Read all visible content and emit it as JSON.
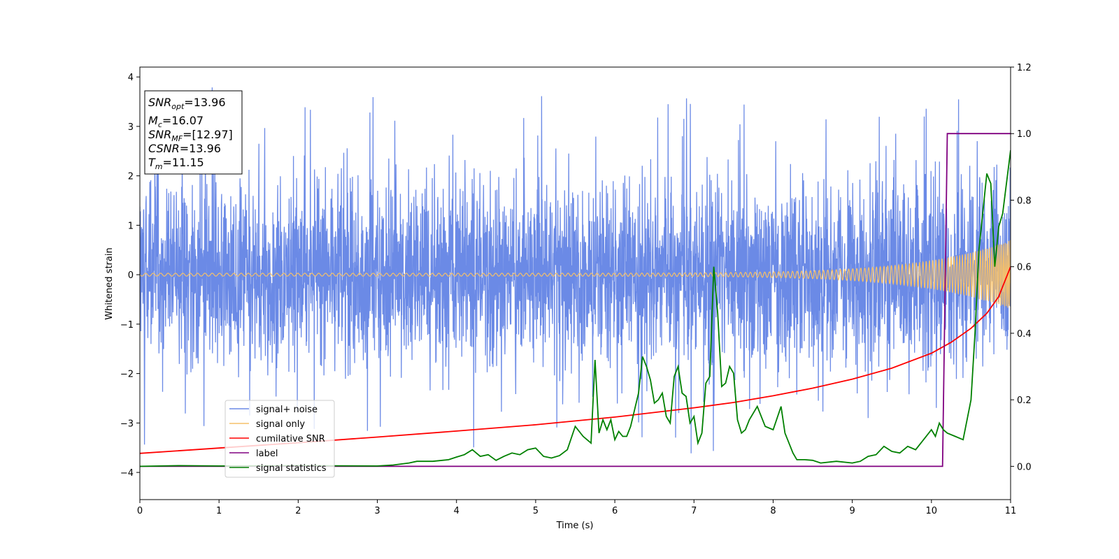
{
  "chart_data": {
    "type": "line",
    "xlabel": "Time (s)",
    "ylabel": "Whitened strain",
    "xlim": [
      0,
      11
    ],
    "ylim_left": [
      -4.55,
      4.2
    ],
    "ylim_right": [
      -0.1,
      1.2
    ],
    "x_ticks": [
      "0",
      "1",
      "2",
      "3",
      "4",
      "5",
      "6",
      "7",
      "8",
      "9",
      "10",
      "11"
    ],
    "y_left_ticks": [
      "4",
      "3",
      "2",
      "1",
      "0",
      "−1",
      "−2",
      "−3",
      "−4"
    ],
    "y_right_ticks": [
      "1.2",
      "1.0",
      "0.8",
      "0.6",
      "0.4",
      "0.2",
      "0.0"
    ],
    "legend_position": "lower-left",
    "info_box": {
      "snr_opt": {
        "base": "SNR",
        "sub": "opt",
        "value": "=13.96"
      },
      "mc": {
        "base": "M",
        "sub": "c",
        "value": "=16.07"
      },
      "snr_mf": {
        "base": "SNR",
        "sub": "MF",
        "value": "=[12.97]"
      },
      "csnr": {
        "base": "CSNR",
        "sub": "",
        "value": "=13.96"
      },
      "tm": {
        "base": "T",
        "sub": "m",
        "value": "=11.15"
      }
    },
    "series": [
      {
        "name": "signal+ noise",
        "axis": "left",
        "color": "#6b8ae6",
        "kind": "noise",
        "std": 0.95,
        "spike_max": 3.8,
        "spike_min": -4.1
      },
      {
        "name": "signal only",
        "axis": "left",
        "color": "#f5c06a",
        "kind": "chirp",
        "amp_start": 0.03,
        "amp_end": 0.7
      },
      {
        "name": "cumilative SNR",
        "axis": "right",
        "color": "#ff0000",
        "kind": "curve",
        "x": [
          0,
          1,
          2,
          3,
          4,
          5,
          6,
          7,
          7.5,
          8,
          8.5,
          9,
          9.5,
          10,
          10.25,
          10.5,
          10.7,
          10.85,
          11
        ],
        "y": [
          0.039,
          0.055,
          0.071,
          0.088,
          0.106,
          0.125,
          0.148,
          0.176,
          0.192,
          0.212,
          0.235,
          0.262,
          0.295,
          0.34,
          0.373,
          0.415,
          0.46,
          0.51,
          0.6
        ]
      },
      {
        "name": "label",
        "axis": "right",
        "color": "#800080",
        "kind": "step",
        "x": [
          0,
          10.14,
          10.2,
          11
        ],
        "y": [
          0,
          0,
          1,
          1
        ]
      },
      {
        "name": "signal statistics",
        "axis": "right",
        "color": "#008000",
        "kind": "curve",
        "x": [
          0,
          0.5,
          1,
          2,
          3,
          3.2,
          3.4,
          3.5,
          3.7,
          3.9,
          4.0,
          4.1,
          4.2,
          4.3,
          4.4,
          4.5,
          4.6,
          4.7,
          4.8,
          4.9,
          5.0,
          5.1,
          5.2,
          5.3,
          5.4,
          5.5,
          5.6,
          5.7,
          5.75,
          5.8,
          5.85,
          5.9,
          5.95,
          6.0,
          6.05,
          6.1,
          6.15,
          6.2,
          6.3,
          6.35,
          6.4,
          6.45,
          6.5,
          6.55,
          6.6,
          6.65,
          6.7,
          6.75,
          6.8,
          6.85,
          6.9,
          6.95,
          7.0,
          7.05,
          7.1,
          7.15,
          7.2,
          7.25,
          7.3,
          7.35,
          7.4,
          7.45,
          7.5,
          7.55,
          7.6,
          7.65,
          7.7,
          7.8,
          7.9,
          8.0,
          8.1,
          8.15,
          8.2,
          8.25,
          8.3,
          8.4,
          8.5,
          8.6,
          8.8,
          9.0,
          9.1,
          9.2,
          9.3,
          9.4,
          9.5,
          9.6,
          9.7,
          9.8,
          9.9,
          10.0,
          10.05,
          10.1,
          10.15,
          10.2,
          10.3,
          10.4,
          10.5,
          10.55,
          10.6,
          10.7,
          10.75,
          10.8,
          10.85,
          10.9,
          11.0
        ],
        "y": [
          0.0,
          0.002,
          0.001,
          0.002,
          0.001,
          0.004,
          0.01,
          0.015,
          0.015,
          0.02,
          0.028,
          0.035,
          0.05,
          0.03,
          0.035,
          0.018,
          0.03,
          0.04,
          0.035,
          0.05,
          0.055,
          0.03,
          0.025,
          0.032,
          0.05,
          0.12,
          0.09,
          0.07,
          0.32,
          0.1,
          0.14,
          0.11,
          0.14,
          0.08,
          0.105,
          0.09,
          0.09,
          0.12,
          0.22,
          0.33,
          0.3,
          0.26,
          0.19,
          0.2,
          0.22,
          0.15,
          0.13,
          0.27,
          0.3,
          0.22,
          0.21,
          0.13,
          0.15,
          0.07,
          0.1,
          0.25,
          0.27,
          0.6,
          0.46,
          0.24,
          0.25,
          0.3,
          0.28,
          0.14,
          0.1,
          0.11,
          0.14,
          0.18,
          0.12,
          0.11,
          0.18,
          0.1,
          0.07,
          0.04,
          0.02,
          0.02,
          0.018,
          0.01,
          0.015,
          0.01,
          0.015,
          0.03,
          0.035,
          0.06,
          0.045,
          0.04,
          0.06,
          0.05,
          0.08,
          0.11,
          0.09,
          0.13,
          0.11,
          0.1,
          0.09,
          0.08,
          0.2,
          0.4,
          0.65,
          0.88,
          0.85,
          0.6,
          0.72,
          0.76,
          0.95
        ]
      }
    ]
  }
}
